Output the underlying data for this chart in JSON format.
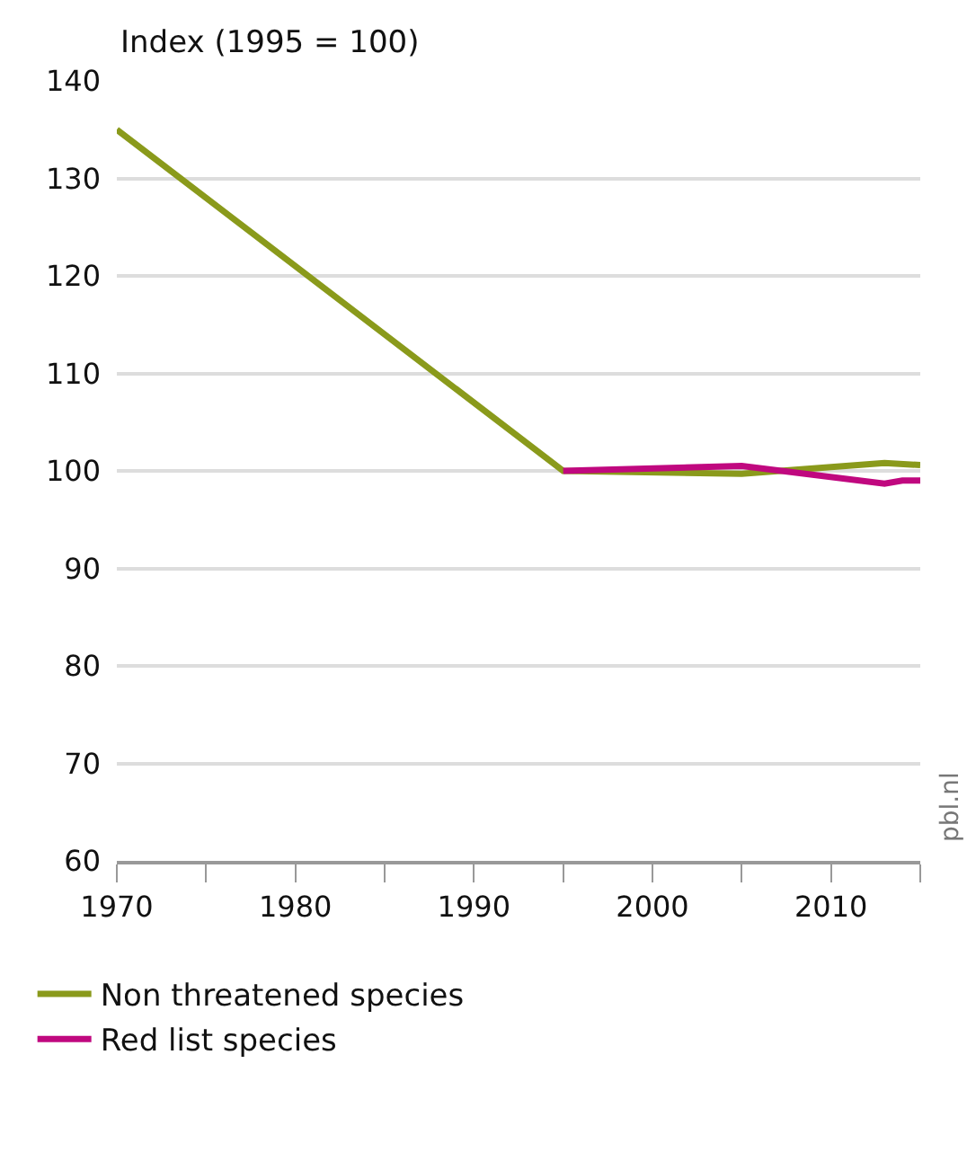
{
  "chart_data": {
    "type": "line",
    "ylabel": "Index (1995 = 100)",
    "series": [
      {
        "name": "Non threatened species",
        "color": "#8a9a1b",
        "x": [
          1970,
          1995,
          2005,
          2013,
          2015
        ],
        "values": [
          135,
          100,
          99.7,
          100.8,
          100.6
        ]
      },
      {
        "name": "Red list species",
        "color": "#c0087f",
        "x": [
          1995,
          2005,
          2013,
          2014,
          2015
        ],
        "values": [
          100,
          100.5,
          98.7,
          99,
          99
        ]
      }
    ],
    "xlim": [
      1970,
      2015
    ],
    "xticks": [
      1970,
      {
        "value": 1975,
        "label": null
      },
      1980,
      {
        "value": 1985,
        "label": null
      },
      1990,
      {
        "value": 1995,
        "label": null
      },
      2000,
      {
        "value": 2005,
        "label": null
      },
      2010,
      {
        "value": 2015,
        "label": null
      }
    ],
    "ylim": [
      60,
      140
    ],
    "yticks": [
      60,
      70,
      80,
      90,
      100,
      110,
      120,
      130,
      140
    ],
    "grid": "y",
    "legend": "bottom left",
    "marker": "none",
    "line_style": "solid",
    "annotations": [
      "pbl.nl"
    ]
  }
}
